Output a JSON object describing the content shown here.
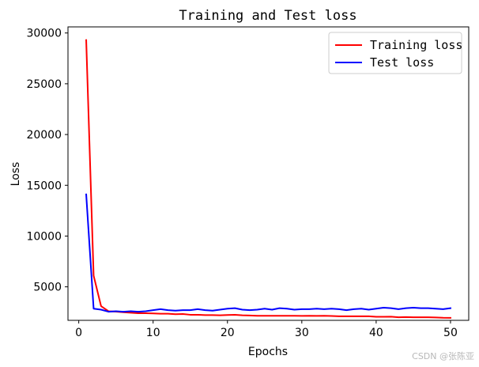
{
  "chart_data": {
    "type": "line",
    "title": "Training and Test loss",
    "xlabel": "Epochs",
    "ylabel": "Loss",
    "xlim": [
      -1.45,
      52.45
    ],
    "ylim": [
      1700,
      30600
    ],
    "xticks": [
      0,
      10,
      20,
      30,
      40,
      50
    ],
    "yticks": [
      5000,
      10000,
      15000,
      20000,
      25000,
      30000
    ],
    "grid": false,
    "legend_position": "upper right",
    "x": [
      1,
      2,
      3,
      4,
      5,
      6,
      7,
      8,
      9,
      10,
      11,
      12,
      13,
      14,
      15,
      16,
      17,
      18,
      19,
      20,
      21,
      22,
      23,
      24,
      25,
      26,
      27,
      28,
      29,
      30,
      31,
      32,
      33,
      34,
      35,
      36,
      37,
      38,
      39,
      40,
      41,
      42,
      43,
      44,
      45,
      46,
      47,
      48,
      49,
      50
    ],
    "series": [
      {
        "name": "Training loss",
        "color": "#ff0000",
        "values": [
          29300,
          6100,
          3100,
          2600,
          2560,
          2500,
          2450,
          2400,
          2400,
          2380,
          2350,
          2350,
          2300,
          2320,
          2250,
          2250,
          2220,
          2220,
          2200,
          2230,
          2250,
          2200,
          2180,
          2150,
          2150,
          2150,
          2150,
          2150,
          2150,
          2140,
          2150,
          2140,
          2150,
          2130,
          2100,
          2100,
          2100,
          2100,
          2100,
          2050,
          2050,
          2060,
          2000,
          2020,
          2000,
          2000,
          2000,
          1980,
          1950,
          1940
        ]
      },
      {
        "name": "Test loss",
        "color": "#0000ff",
        "values": [
          14100,
          2850,
          2750,
          2550,
          2600,
          2550,
          2600,
          2550,
          2600,
          2700,
          2800,
          2700,
          2650,
          2700,
          2700,
          2800,
          2700,
          2650,
          2750,
          2850,
          2900,
          2750,
          2700,
          2750,
          2850,
          2750,
          2900,
          2850,
          2750,
          2800,
          2800,
          2850,
          2800,
          2850,
          2800,
          2700,
          2800,
          2850,
          2750,
          2850,
          2950,
          2900,
          2800,
          2900,
          2950,
          2900,
          2900,
          2850,
          2800,
          2900
        ]
      }
    ]
  },
  "watermark": "CSDN @张陈亚"
}
